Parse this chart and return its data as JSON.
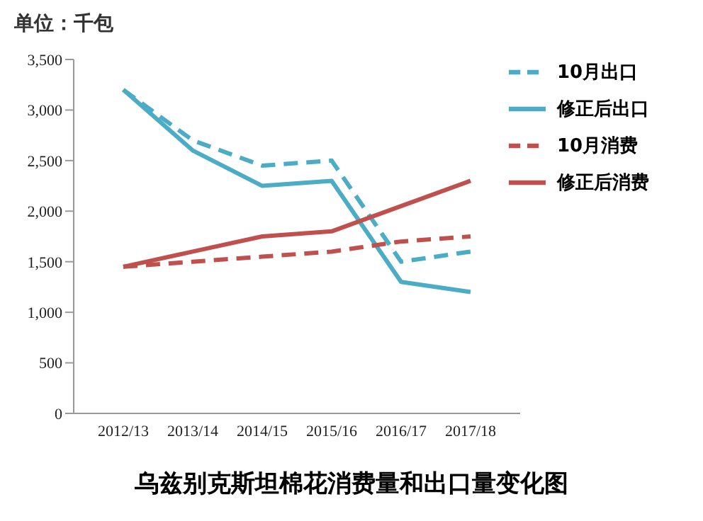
{
  "chart_data": {
    "type": "line",
    "title": "乌兹别克斯坦棉花消费量和出口量变化图",
    "ylabel": "单位：千包",
    "categories": [
      "2012/13",
      "2013/14",
      "2014/15",
      "2015/16",
      "2016/17",
      "2017/18"
    ],
    "series": [
      {
        "name": "10月出口",
        "color": "#4bacc6",
        "line_style": "dashed",
        "values": [
          3200,
          2700,
          2450,
          2500,
          1500,
          1600
        ]
      },
      {
        "name": "修正后出口",
        "color": "#4bacc6",
        "line_style": "solid",
        "values": [
          3200,
          2600,
          2250,
          2300,
          1300,
          1200
        ]
      },
      {
        "name": "10月消费",
        "color": "#c0504d",
        "line_style": "dashed",
        "values": [
          1450,
          1500,
          1550,
          1600,
          1700,
          1750
        ]
      },
      {
        "name": "修正后消费",
        "color": "#c0504d",
        "line_style": "solid",
        "values": [
          1450,
          1600,
          1750,
          1800,
          2050,
          2300
        ]
      }
    ],
    "ylim": [
      0,
      3500
    ],
    "yticks": [
      0,
      500,
      {
        "value": 1000,
        "label": "1,000"
      },
      {
        "value": 1500,
        "label": "1,500"
      },
      {
        "value": 2000,
        "label": "2,000"
      },
      {
        "value": 2500,
        "label": "2,500"
      },
      {
        "value": 3000,
        "label": "3,000"
      },
      {
        "value": 3500,
        "label": "3,500"
      }
    ],
    "grid": false,
    "legend": "top right",
    "marker": "none"
  }
}
